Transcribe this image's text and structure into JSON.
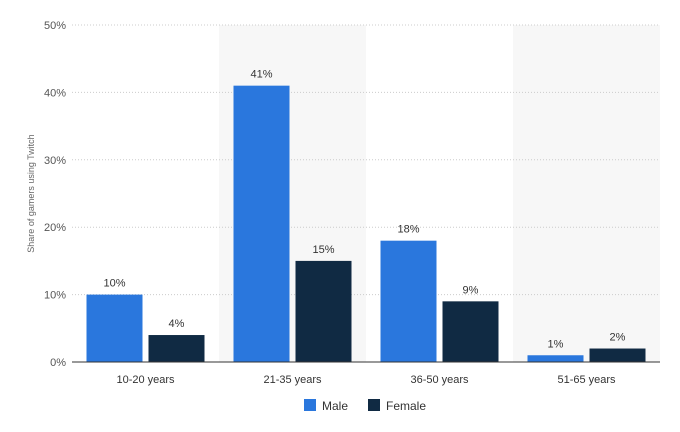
{
  "chart_data": {
    "type": "bar",
    "title": "",
    "xlabel": "",
    "ylabel": "Share of gamers using Twitch",
    "categories": [
      "10-20 years",
      "21-35 years",
      "36-50 years",
      "51-65 years"
    ],
    "series": [
      {
        "name": "Male",
        "values": [
          10,
          41,
          18,
          1
        ],
        "color": "#2a77dd"
      },
      {
        "name": "Female",
        "values": [
          4,
          15,
          9,
          2
        ],
        "color": "#102a43"
      }
    ],
    "ylim": [
      0,
      50
    ],
    "yticks": [
      0,
      10,
      20,
      30,
      40,
      50
    ],
    "tick_suffix": "%",
    "value_suffix": "%",
    "grid": true,
    "grid_style": "dotted",
    "alternate_band_color": "#f7f7f7",
    "legend": "bottom"
  }
}
